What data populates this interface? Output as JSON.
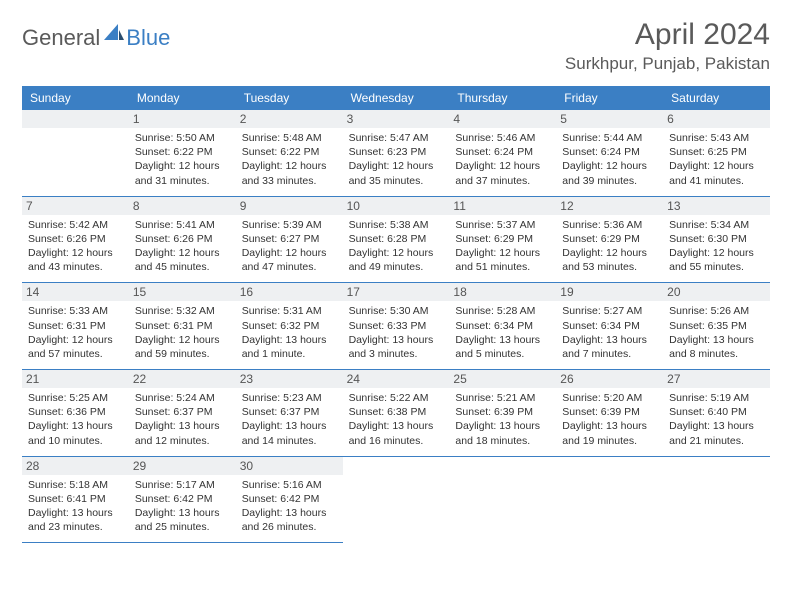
{
  "brand": {
    "part1": "General",
    "part2": "Blue"
  },
  "title": "April 2024",
  "location": "Surkhpur, Punjab, Pakistan",
  "colors": {
    "accent": "#3b7fc4",
    "text": "#333333",
    "muted": "#5a5a5a",
    "daybg": "#eef0f2",
    "background": "#ffffff"
  },
  "weekdays": [
    "Sunday",
    "Monday",
    "Tuesday",
    "Wednesday",
    "Thursday",
    "Friday",
    "Saturday"
  ],
  "layout": {
    "firstDayOffset": 1,
    "daysInMonth": 30
  },
  "days": [
    {
      "n": 1,
      "sunrise": "5:50 AM",
      "sunset": "6:22 PM",
      "daylight": "12 hours and 31 minutes."
    },
    {
      "n": 2,
      "sunrise": "5:48 AM",
      "sunset": "6:22 PM",
      "daylight": "12 hours and 33 minutes."
    },
    {
      "n": 3,
      "sunrise": "5:47 AM",
      "sunset": "6:23 PM",
      "daylight": "12 hours and 35 minutes."
    },
    {
      "n": 4,
      "sunrise": "5:46 AM",
      "sunset": "6:24 PM",
      "daylight": "12 hours and 37 minutes."
    },
    {
      "n": 5,
      "sunrise": "5:44 AM",
      "sunset": "6:24 PM",
      "daylight": "12 hours and 39 minutes."
    },
    {
      "n": 6,
      "sunrise": "5:43 AM",
      "sunset": "6:25 PM",
      "daylight": "12 hours and 41 minutes."
    },
    {
      "n": 7,
      "sunrise": "5:42 AM",
      "sunset": "6:26 PM",
      "daylight": "12 hours and 43 minutes."
    },
    {
      "n": 8,
      "sunrise": "5:41 AM",
      "sunset": "6:26 PM",
      "daylight": "12 hours and 45 minutes."
    },
    {
      "n": 9,
      "sunrise": "5:39 AM",
      "sunset": "6:27 PM",
      "daylight": "12 hours and 47 minutes."
    },
    {
      "n": 10,
      "sunrise": "5:38 AM",
      "sunset": "6:28 PM",
      "daylight": "12 hours and 49 minutes."
    },
    {
      "n": 11,
      "sunrise": "5:37 AM",
      "sunset": "6:29 PM",
      "daylight": "12 hours and 51 minutes."
    },
    {
      "n": 12,
      "sunrise": "5:36 AM",
      "sunset": "6:29 PM",
      "daylight": "12 hours and 53 minutes."
    },
    {
      "n": 13,
      "sunrise": "5:34 AM",
      "sunset": "6:30 PM",
      "daylight": "12 hours and 55 minutes."
    },
    {
      "n": 14,
      "sunrise": "5:33 AM",
      "sunset": "6:31 PM",
      "daylight": "12 hours and 57 minutes."
    },
    {
      "n": 15,
      "sunrise": "5:32 AM",
      "sunset": "6:31 PM",
      "daylight": "12 hours and 59 minutes."
    },
    {
      "n": 16,
      "sunrise": "5:31 AM",
      "sunset": "6:32 PM",
      "daylight": "13 hours and 1 minute."
    },
    {
      "n": 17,
      "sunrise": "5:30 AM",
      "sunset": "6:33 PM",
      "daylight": "13 hours and 3 minutes."
    },
    {
      "n": 18,
      "sunrise": "5:28 AM",
      "sunset": "6:34 PM",
      "daylight": "13 hours and 5 minutes."
    },
    {
      "n": 19,
      "sunrise": "5:27 AM",
      "sunset": "6:34 PM",
      "daylight": "13 hours and 7 minutes."
    },
    {
      "n": 20,
      "sunrise": "5:26 AM",
      "sunset": "6:35 PM",
      "daylight": "13 hours and 8 minutes."
    },
    {
      "n": 21,
      "sunrise": "5:25 AM",
      "sunset": "6:36 PM",
      "daylight": "13 hours and 10 minutes."
    },
    {
      "n": 22,
      "sunrise": "5:24 AM",
      "sunset": "6:37 PM",
      "daylight": "13 hours and 12 minutes."
    },
    {
      "n": 23,
      "sunrise": "5:23 AM",
      "sunset": "6:37 PM",
      "daylight": "13 hours and 14 minutes."
    },
    {
      "n": 24,
      "sunrise": "5:22 AM",
      "sunset": "6:38 PM",
      "daylight": "13 hours and 16 minutes."
    },
    {
      "n": 25,
      "sunrise": "5:21 AM",
      "sunset": "6:39 PM",
      "daylight": "13 hours and 18 minutes."
    },
    {
      "n": 26,
      "sunrise": "5:20 AM",
      "sunset": "6:39 PM",
      "daylight": "13 hours and 19 minutes."
    },
    {
      "n": 27,
      "sunrise": "5:19 AM",
      "sunset": "6:40 PM",
      "daylight": "13 hours and 21 minutes."
    },
    {
      "n": 28,
      "sunrise": "5:18 AM",
      "sunset": "6:41 PM",
      "daylight": "13 hours and 23 minutes."
    },
    {
      "n": 29,
      "sunrise": "5:17 AM",
      "sunset": "6:42 PM",
      "daylight": "13 hours and 25 minutes."
    },
    {
      "n": 30,
      "sunrise": "5:16 AM",
      "sunset": "6:42 PM",
      "daylight": "13 hours and 26 minutes."
    }
  ],
  "labels": {
    "sunrise": "Sunrise:",
    "sunset": "Sunset:",
    "daylight": "Daylight:"
  }
}
